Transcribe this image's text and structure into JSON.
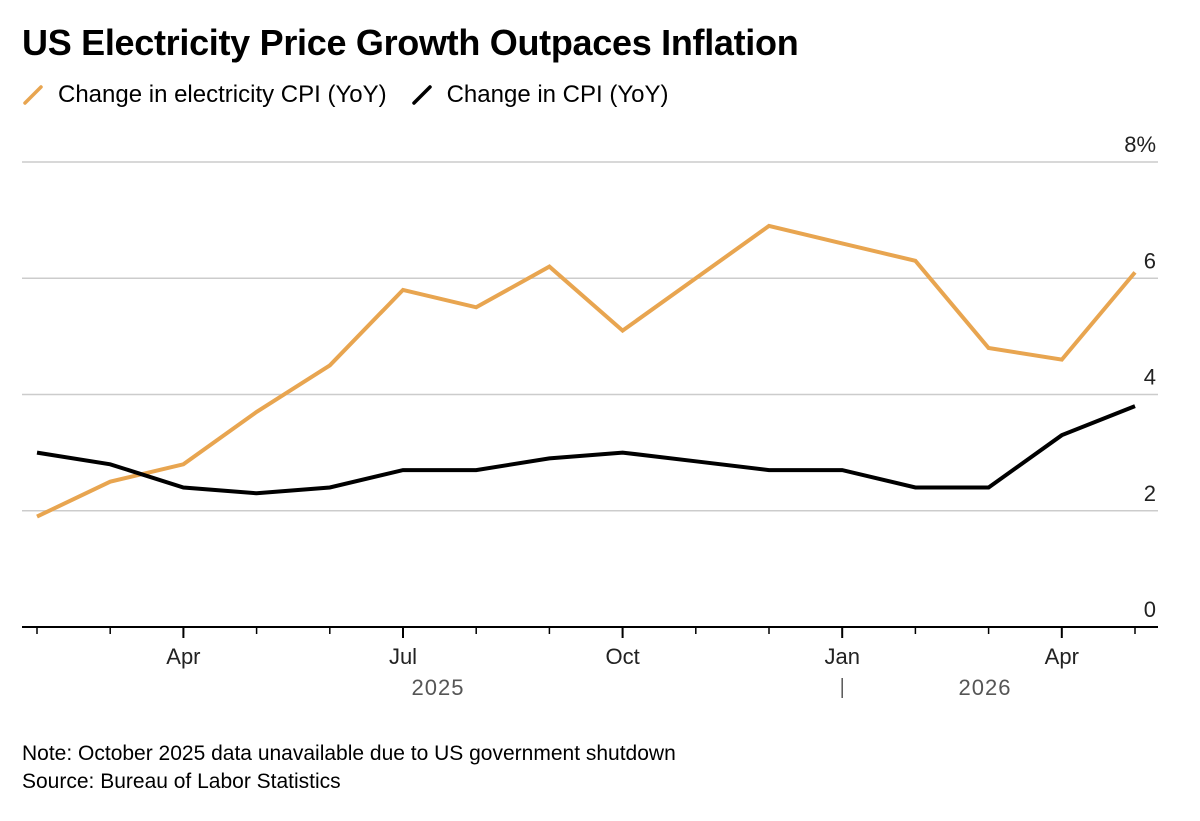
{
  "title": "US Electricity Price Growth Outpaces Inflation",
  "note": "Note: October 2025 data unavailable due to US government shutdown",
  "source": "Source: Bureau of Labor Statistics",
  "colors": {
    "electricity": "#E8A550",
    "cpi": "#000000",
    "grid": "#cccccc"
  },
  "chart_data": {
    "type": "line",
    "title": "US Electricity Price Growth Outpaces Inflation",
    "xlabel": "",
    "ylabel": "",
    "ylim": [
      0,
      8
    ],
    "y_ticks": [
      "0",
      "2",
      "4",
      "6",
      "8%"
    ],
    "x_ticks": [
      "Apr",
      "Jul",
      "Oct",
      "Jan",
      "Apr"
    ],
    "year_labels": [
      "2025",
      "2026"
    ],
    "grid": true,
    "legend_position": "top-left",
    "x": [
      "2025-02",
      "2025-03",
      "2025-04",
      "2025-05",
      "2025-06",
      "2025-07",
      "2025-08",
      "2025-09",
      "2025-10",
      "2025-11",
      "2025-12",
      "2026-01",
      "2026-02",
      "2026-03",
      "2026-04",
      "2026-05"
    ],
    "series": [
      {
        "name": "Change in electricity CPI (YoY)",
        "color": "#E8A550",
        "values": [
          1.9,
          2.5,
          2.8,
          3.7,
          4.5,
          5.8,
          5.5,
          6.2,
          5.1,
          6.0,
          6.9,
          6.6,
          6.3,
          4.8,
          4.6,
          6.1
        ]
      },
      {
        "name": "Change in CPI (YoY)",
        "color": "#000000",
        "values": [
          3.0,
          2.8,
          2.4,
          2.3,
          2.4,
          2.7,
          2.7,
          2.9,
          3.0,
          2.85,
          2.7,
          2.7,
          2.4,
          2.4,
          3.3,
          3.8
        ]
      }
    ]
  }
}
